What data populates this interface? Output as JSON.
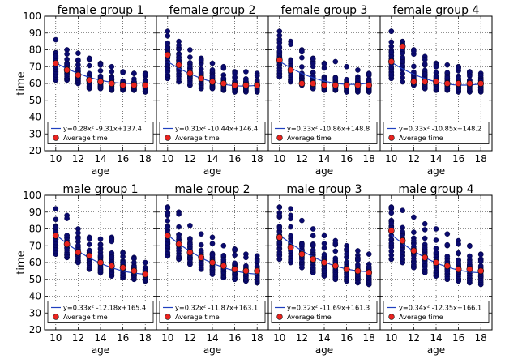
{
  "chart_data": [
    {
      "type": "scatter",
      "title": "female group 1",
      "xlabel": "age",
      "ylabel": "time",
      "xlim": [
        9,
        19
      ],
      "ylim": [
        20,
        100
      ],
      "xticks": [
        10,
        12,
        14,
        16,
        18
      ],
      "yticks": [
        20,
        30,
        40,
        50,
        60,
        70,
        80,
        90,
        100
      ],
      "grid": true,
      "averages": {
        "x": [
          10,
          11,
          12,
          13,
          14,
          15,
          16,
          17,
          18
        ],
        "y": [
          72,
          68,
          65,
          62,
          61,
          60,
          59,
          59,
          59
        ]
      },
      "fit": {
        "a": 0.28,
        "b": -9.31,
        "c": 137.4,
        "label": "y=0.28x² -9.31x+137.4"
      },
      "scatter": {
        "x": [
          10,
          11,
          12,
          13,
          14,
          15,
          16,
          17,
          18
        ],
        "ymin": [
          62,
          62,
          60,
          57,
          57,
          56,
          56,
          56,
          55
        ],
        "ymax": [
          86,
          80,
          78,
          75,
          72,
          70,
          67,
          66,
          66
        ]
      },
      "legend_avg": "Average time"
    },
    {
      "type": "scatter",
      "title": "female group 2",
      "xlabel": "age",
      "ylabel": "time",
      "xlim": [
        9,
        19
      ],
      "ylim": [
        20,
        100
      ],
      "xticks": [
        10,
        12,
        14,
        16,
        18
      ],
      "yticks": [
        20,
        30,
        40,
        50,
        60,
        70,
        80,
        90,
        100
      ],
      "grid": true,
      "averages": {
        "x": [
          10,
          11,
          12,
          13,
          14,
          15,
          16,
          17,
          18
        ],
        "y": [
          77,
          71,
          66,
          63,
          61,
          60,
          59,
          59,
          59
        ]
      },
      "fit": {
        "a": 0.31,
        "b": -10.44,
        "c": 146.4,
        "label": "y=0.31x² -10.44x+146.4"
      },
      "scatter": {
        "x": [
          10,
          11,
          12,
          13,
          14,
          15,
          16,
          17,
          18
        ],
        "ymin": [
          63,
          61,
          59,
          57,
          57,
          56,
          55,
          55,
          55
        ],
        "ymax": [
          91,
          85,
          80,
          75,
          72,
          70,
          67,
          67,
          66
        ]
      },
      "legend_avg": "Average time"
    },
    {
      "type": "scatter",
      "title": "female group 3",
      "xlabel": "age",
      "ylabel": "time",
      "xlim": [
        9,
        19
      ],
      "ylim": [
        20,
        100
      ],
      "xticks": [
        10,
        12,
        14,
        16,
        18
      ],
      "yticks": [
        20,
        30,
        40,
        50,
        60,
        70,
        80,
        90,
        100
      ],
      "grid": true,
      "averages": {
        "x": [
          10,
          11,
          12,
          13,
          14,
          15,
          16,
          17,
          18
        ],
        "y": [
          74,
          68,
          60,
          60,
          59,
          59,
          59,
          59,
          59
        ]
      },
      "fit": {
        "a": 0.33,
        "b": -10.86,
        "c": 148.8,
        "label": "y=0.33x² -10.86x+148.8"
      },
      "scatter": {
        "x": [
          10,
          11,
          12,
          13,
          14,
          15,
          16,
          17,
          18
        ],
        "ymin": [
          64,
          61,
          59,
          57,
          56,
          56,
          55,
          55,
          55
        ],
        "ymax": [
          91,
          85,
          80,
          75,
          72,
          73,
          70,
          68,
          66
        ]
      },
      "legend_avg": "Average time"
    },
    {
      "type": "scatter",
      "title": "female group 4",
      "xlabel": "age",
      "ylabel": "time",
      "xlim": [
        9,
        19
      ],
      "ylim": [
        20,
        100
      ],
      "xticks": [
        10,
        12,
        14,
        16,
        18
      ],
      "yticks": [
        20,
        30,
        40,
        50,
        60,
        70,
        80,
        90,
        100
      ],
      "grid": true,
      "averages": {
        "x": [
          10,
          11,
          12,
          13,
          14,
          15,
          16,
          17,
          18
        ],
        "y": [
          73,
          82,
          61,
          61,
          61,
          60,
          60,
          60,
          60
        ]
      },
      "fit": {
        "a": 0.33,
        "b": -10.85,
        "c": 148.2,
        "label": "y=0.33x² -10.85x+148.2"
      },
      "scatter": {
        "x": [
          10,
          11,
          12,
          13,
          14,
          15,
          16,
          17,
          18
        ],
        "ymin": [
          63,
          61,
          59,
          57,
          56,
          56,
          55,
          55,
          55
        ],
        "ymax": [
          91,
          85,
          80,
          76,
          72,
          71,
          70,
          67,
          66
        ]
      },
      "legend_avg": "Average time"
    },
    {
      "type": "scatter",
      "title": "male group 1",
      "xlabel": "age",
      "ylabel": "time",
      "xlim": [
        9,
        19
      ],
      "ylim": [
        20,
        100
      ],
      "xticks": [
        10,
        12,
        14,
        16,
        18
      ],
      "yticks": [
        20,
        30,
        40,
        50,
        60,
        70,
        80,
        90,
        100
      ],
      "grid": true,
      "averages": {
        "x": [
          10,
          11,
          12,
          13,
          14,
          15,
          16,
          17,
          18
        ],
        "y": [
          76,
          71,
          66,
          64,
          60,
          58,
          57,
          55,
          53
        ]
      },
      "fit": {
        "a": 0.33,
        "b": -12.18,
        "c": 165.4,
        "label": "y=0.33x² -12.18x+165.4"
      },
      "scatter": {
        "x": [
          10,
          11,
          12,
          13,
          14,
          15,
          16,
          17,
          18
        ],
        "ymin": [
          65,
          63,
          60,
          56,
          54,
          52,
          51,
          50,
          49
        ],
        "ymax": [
          92,
          88,
          80,
          75,
          74,
          75,
          66,
          63,
          60
        ]
      },
      "legend_avg": "Average time"
    },
    {
      "type": "scatter",
      "title": "male group 2",
      "xlabel": "age",
      "ylabel": "time",
      "xlim": [
        9,
        19
      ],
      "ylim": [
        20,
        100
      ],
      "xticks": [
        10,
        12,
        14,
        16,
        18
      ],
      "yticks": [
        20,
        30,
        40,
        50,
        60,
        70,
        80,
        90,
        100
      ],
      "grid": true,
      "averages": {
        "x": [
          10,
          11,
          12,
          13,
          14,
          15,
          16,
          17,
          18
        ],
        "y": [
          76,
          71,
          66,
          63,
          60,
          58,
          56,
          55,
          55
        ]
      },
      "fit": {
        "a": 0.32,
        "b": -11.87,
        "c": 163.1,
        "label": "y=0.32x² -11.87x+163.1"
      },
      "scatter": {
        "x": [
          10,
          11,
          12,
          13,
          14,
          15,
          16,
          17,
          18
        ],
        "ymin": [
          64,
          62,
          59,
          56,
          53,
          51,
          50,
          49,
          48
        ],
        "ymax": [
          93,
          90,
          82,
          77,
          75,
          70,
          68,
          65,
          64
        ]
      },
      "legend_avg": "Average time"
    },
    {
      "type": "scatter",
      "title": "male group 3",
      "xlabel": "age",
      "ylabel": "time",
      "xlim": [
        9,
        19
      ],
      "ylim": [
        20,
        100
      ],
      "xticks": [
        10,
        12,
        14,
        16,
        18
      ],
      "yticks": [
        20,
        30,
        40,
        50,
        60,
        70,
        80,
        90,
        100
      ],
      "grid": true,
      "averages": {
        "x": [
          10,
          11,
          12,
          13,
          14,
          15,
          16,
          17,
          18
        ],
        "y": [
          75,
          69,
          65,
          62,
          60,
          58,
          56,
          55,
          54
        ]
      },
      "fit": {
        "a": 0.32,
        "b": -11.69,
        "c": 161.3,
        "label": "y=0.32x² -11.69x+161.3"
      },
      "scatter": {
        "x": [
          10,
          11,
          12,
          13,
          14,
          15,
          16,
          17,
          18
        ],
        "ymin": [
          62,
          60,
          57,
          54,
          52,
          50,
          49,
          48,
          47
        ],
        "ymax": [
          93,
          92,
          85,
          80,
          76,
          73,
          70,
          67,
          65
        ]
      },
      "legend_avg": "Average time"
    },
    {
      "type": "scatter",
      "title": "male group 4",
      "xlabel": "age",
      "ylabel": "time",
      "xlim": [
        9,
        19
      ],
      "ylim": [
        20,
        100
      ],
      "xticks": [
        10,
        12,
        14,
        16,
        18
      ],
      "yticks": [
        20,
        30,
        40,
        50,
        60,
        70,
        80,
        90,
        100
      ],
      "grid": true,
      "averages": {
        "x": [
          10,
          11,
          12,
          13,
          14,
          15,
          16,
          17,
          18
        ],
        "y": [
          79,
          73,
          67,
          63,
          60,
          58,
          56,
          56,
          55
        ]
      },
      "fit": {
        "a": 0.34,
        "b": -12.35,
        "c": 166.1,
        "label": "y=0.34x² -12.35x+166.1"
      },
      "scatter": {
        "x": [
          10,
          11,
          12,
          13,
          14,
          15,
          16,
          17,
          18
        ],
        "ymin": [
          62,
          60,
          57,
          54,
          52,
          50,
          49,
          48,
          47
        ],
        "ymax": [
          93,
          91,
          87,
          83,
          80,
          77,
          73,
          70,
          65
        ]
      },
      "legend_avg": "Average time"
    }
  ],
  "colors": {
    "scatter": "#0a0a6e",
    "scatter_edge": "#000033",
    "fit": "#1f3fbf",
    "average": "#e8231f",
    "grid": "#222222"
  }
}
